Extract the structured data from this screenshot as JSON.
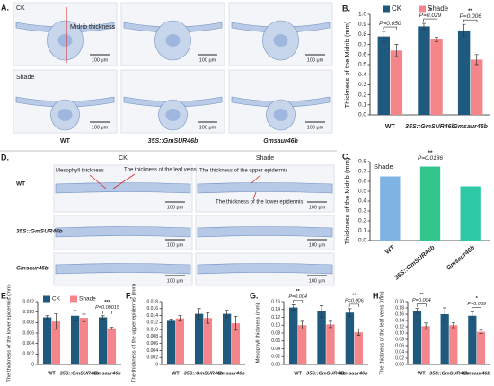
{
  "panel_a": {
    "label": "A.",
    "ck": "CK",
    "shade": "Shade",
    "midrib": "Midrib thickness",
    "scale": [
      "100 μm",
      "100 μm",
      "100 μm",
      "100 μm",
      "100 μm",
      "100 μm"
    ],
    "genotypes": [
      "WT",
      "35S::GmSUR46b",
      "Gmsaur46b"
    ]
  },
  "panel_d": {
    "label": "D.",
    "ck": "CK",
    "shade": "Shade",
    "genotypes": [
      "WT",
      "35S::GmSUR46b",
      "Gmsaur46b"
    ],
    "annotations": [
      "Mesophyll thickness",
      "The thickness of the leaf veins",
      "The thickness of the upper epidermis",
      "The thickness of the lower epidermis"
    ],
    "scale": [
      "100 μm",
      "100 μm",
      "100 μm",
      "100 μm",
      "100 μm",
      "100 μm"
    ]
  },
  "chart_data": [
    {
      "type": "bar",
      "title": "B.",
      "ylabel": "Thickness of the Midrib (mm)",
      "categories": [
        "WT",
        "35S::GmSUR46b",
        "Gmsaur46b"
      ],
      "series": [
        {
          "name": "CK",
          "color": "#1f5a7e",
          "values": [
            0.78,
            0.88,
            0.84
          ],
          "errors": [
            0.05,
            0.03,
            0.06
          ]
        },
        {
          "name": "Shade",
          "color": "#f4858a",
          "values": [
            0.64,
            0.75,
            0.55
          ],
          "errors": [
            0.06,
            0.02,
            0.05
          ]
        }
      ],
      "ylim": [
        0,
        1
      ],
      "yticks": [
        {
          "value": 0,
          "label": "0.0"
        },
        0.1,
        0.2,
        0.3,
        0.4,
        0.5,
        0.6,
        0.7,
        0.8,
        0.9,
        {
          "value": 1,
          "label": "1.0"
        }
      ],
      "legend": "top",
      "annotations": [
        "P=0.050",
        "*",
        "P=0.029",
        "**",
        "P=0.006"
      ]
    },
    {
      "type": "bar",
      "title": "C.",
      "ylabel": "Thickness of the Midrib (mm)",
      "label": "Shade",
      "categories": [
        "WT",
        "35S::GmSUR46b",
        "Gmsaur46b"
      ],
      "series": [
        {
          "colors": [
            "#7eb3e3",
            "#34c48e",
            "#2ec9a6"
          ],
          "values": [
            0.65,
            0.75,
            0.55
          ]
        }
      ],
      "ylim": [
        0,
        0.8
      ],
      "yticks": [
        {
          "value": 0,
          "label": "0.0"
        },
        0.1,
        0.2,
        0.3,
        0.4,
        0.5,
        0.6,
        0.7,
        0.8
      ],
      "annotations": [
        "**",
        "P=0.0186"
      ]
    },
    {
      "type": "bar",
      "title": "E.",
      "ylabel": "The thickness of the lower epidermis (mm)",
      "categories": [
        "WT",
        "35S::GmSUR46b",
        "Gmsaur46b"
      ],
      "series": [
        {
          "name": "CK",
          "color": "#1f5a7e",
          "values": [
            0.009,
            0.0093,
            0.009
          ],
          "errors": [
            0.0003,
            0.001,
            0.0003
          ]
        },
        {
          "name": "Shade",
          "color": "#f4858a",
          "values": [
            0.0082,
            0.0089,
            0.0069
          ],
          "errors": [
            0.0015,
            0.0007,
            0.0002
          ]
        }
      ],
      "ylim": [
        0,
        0.012
      ],
      "yticks": [
        0,
        0.002,
        0.004,
        0.006,
        0.008,
        {
          "value": 0.01,
          "label": "0.010"
        },
        0.012
      ],
      "legend": "top",
      "annotations": [
        "***",
        "P=0.00015"
      ]
    },
    {
      "type": "bar",
      "title": "F.",
      "ylabel": "The thickness of the upper epidermis (mm)",
      "categories": [
        "WT",
        "35S::GmSUR46b",
        "Gmsaur46b"
      ],
      "series": [
        {
          "color": "#1f5a7e",
          "values": [
            0.0125,
            0.0145,
            0.0145
          ],
          "errors": [
            0.0005,
            0.0015,
            0.001
          ]
        },
        {
          "color": "#f4858a",
          "values": [
            0.0132,
            0.0133,
            0.0118
          ],
          "errors": [
            0.0008,
            0.0015,
            0.002
          ]
        }
      ],
      "ylim": [
        0,
        0.018
      ],
      "yticks": [
        0,
        0.002,
        0.004,
        0.006,
        0.008,
        {
          "value": 0.01,
          "label": "0.010"
        },
        0.012,
        0.014,
        0.016,
        0.018
      ]
    },
    {
      "type": "bar",
      "title": "G.",
      "ylabel": "Mesophyll thickness (mm)",
      "categories": [
        "WT",
        "35S::GmSUR46b",
        "Gmsaur46b"
      ],
      "series": [
        {
          "color": "#1f5a7e",
          "values": [
            0.145,
            0.135,
            0.132
          ],
          "errors": [
            0.007,
            0.015,
            0.01
          ]
        },
        {
          "color": "#f4858a",
          "values": [
            0.1,
            0.102,
            0.082
          ],
          "errors": [
            0.01,
            0.008,
            0.008
          ]
        }
      ],
      "ylim": [
        0,
        0.16
      ],
      "yticks": [
        {
          "value": 0,
          "label": "0.00"
        },
        0.02,
        0.04,
        0.06,
        0.08,
        {
          "value": 0.1,
          "label": "0.10"
        },
        0.12,
        0.14,
        0.16
      ],
      "annotations": [
        "**",
        "P=0.004",
        "**",
        "P=0.006"
      ]
    },
    {
      "type": "bar",
      "title": "H.",
      "ylabel": "The thickness of the leaf veins (mm)",
      "categories": [
        "WT",
        "35S::GmSUR46b",
        "Gmsaur46b"
      ],
      "series": [
        {
          "color": "#1f5a7e",
          "values": [
            0.17,
            0.16,
            0.155
          ],
          "errors": [
            0.008,
            0.02,
            0.012
          ]
        },
        {
          "color": "#f4858a",
          "values": [
            0.122,
            0.125,
            0.104
          ],
          "errors": [
            0.01,
            0.008,
            0.005
          ]
        }
      ],
      "ylim": [
        0,
        0.2
      ],
      "yticks": [
        {
          "value": 0,
          "label": "0.00"
        },
        0.02,
        0.04,
        0.06,
        0.08,
        {
          "value": 0.1,
          "label": "0.10"
        },
        0.12,
        0.14,
        0.16,
        0.18,
        {
          "value": 0.2,
          "label": "0.20"
        }
      ],
      "annotations": [
        "**",
        "P=0.004",
        "*",
        "P=0.039"
      ]
    }
  ]
}
